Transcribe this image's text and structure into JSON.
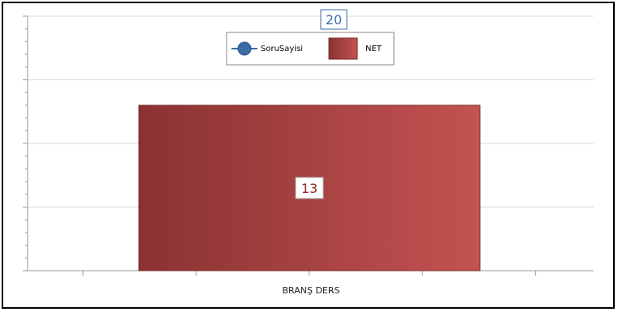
{
  "chart_data": {
    "type": "bar",
    "categories": [
      "BRANŞ DERS"
    ],
    "series": [
      {
        "name": "SoruSayisi",
        "type": "line",
        "values": [
          20
        ],
        "color": "#3a6ca8"
      },
      {
        "name": "NET",
        "type": "bar",
        "values": [
          13
        ],
        "color": "#a13b3b"
      }
    ],
    "ylim": [
      0,
      20
    ],
    "yticks": [
      0,
      5,
      10,
      15,
      20
    ],
    "grid": true,
    "legend_position": "top-center",
    "title": "",
    "xlabel": "",
    "ylabel": ""
  },
  "legend": {
    "line_label": "SoruSayisi",
    "bar_label": "NET"
  },
  "labels": {
    "bar_value": "13",
    "line_value": "20",
    "category": "BRANŞ DERS"
  }
}
